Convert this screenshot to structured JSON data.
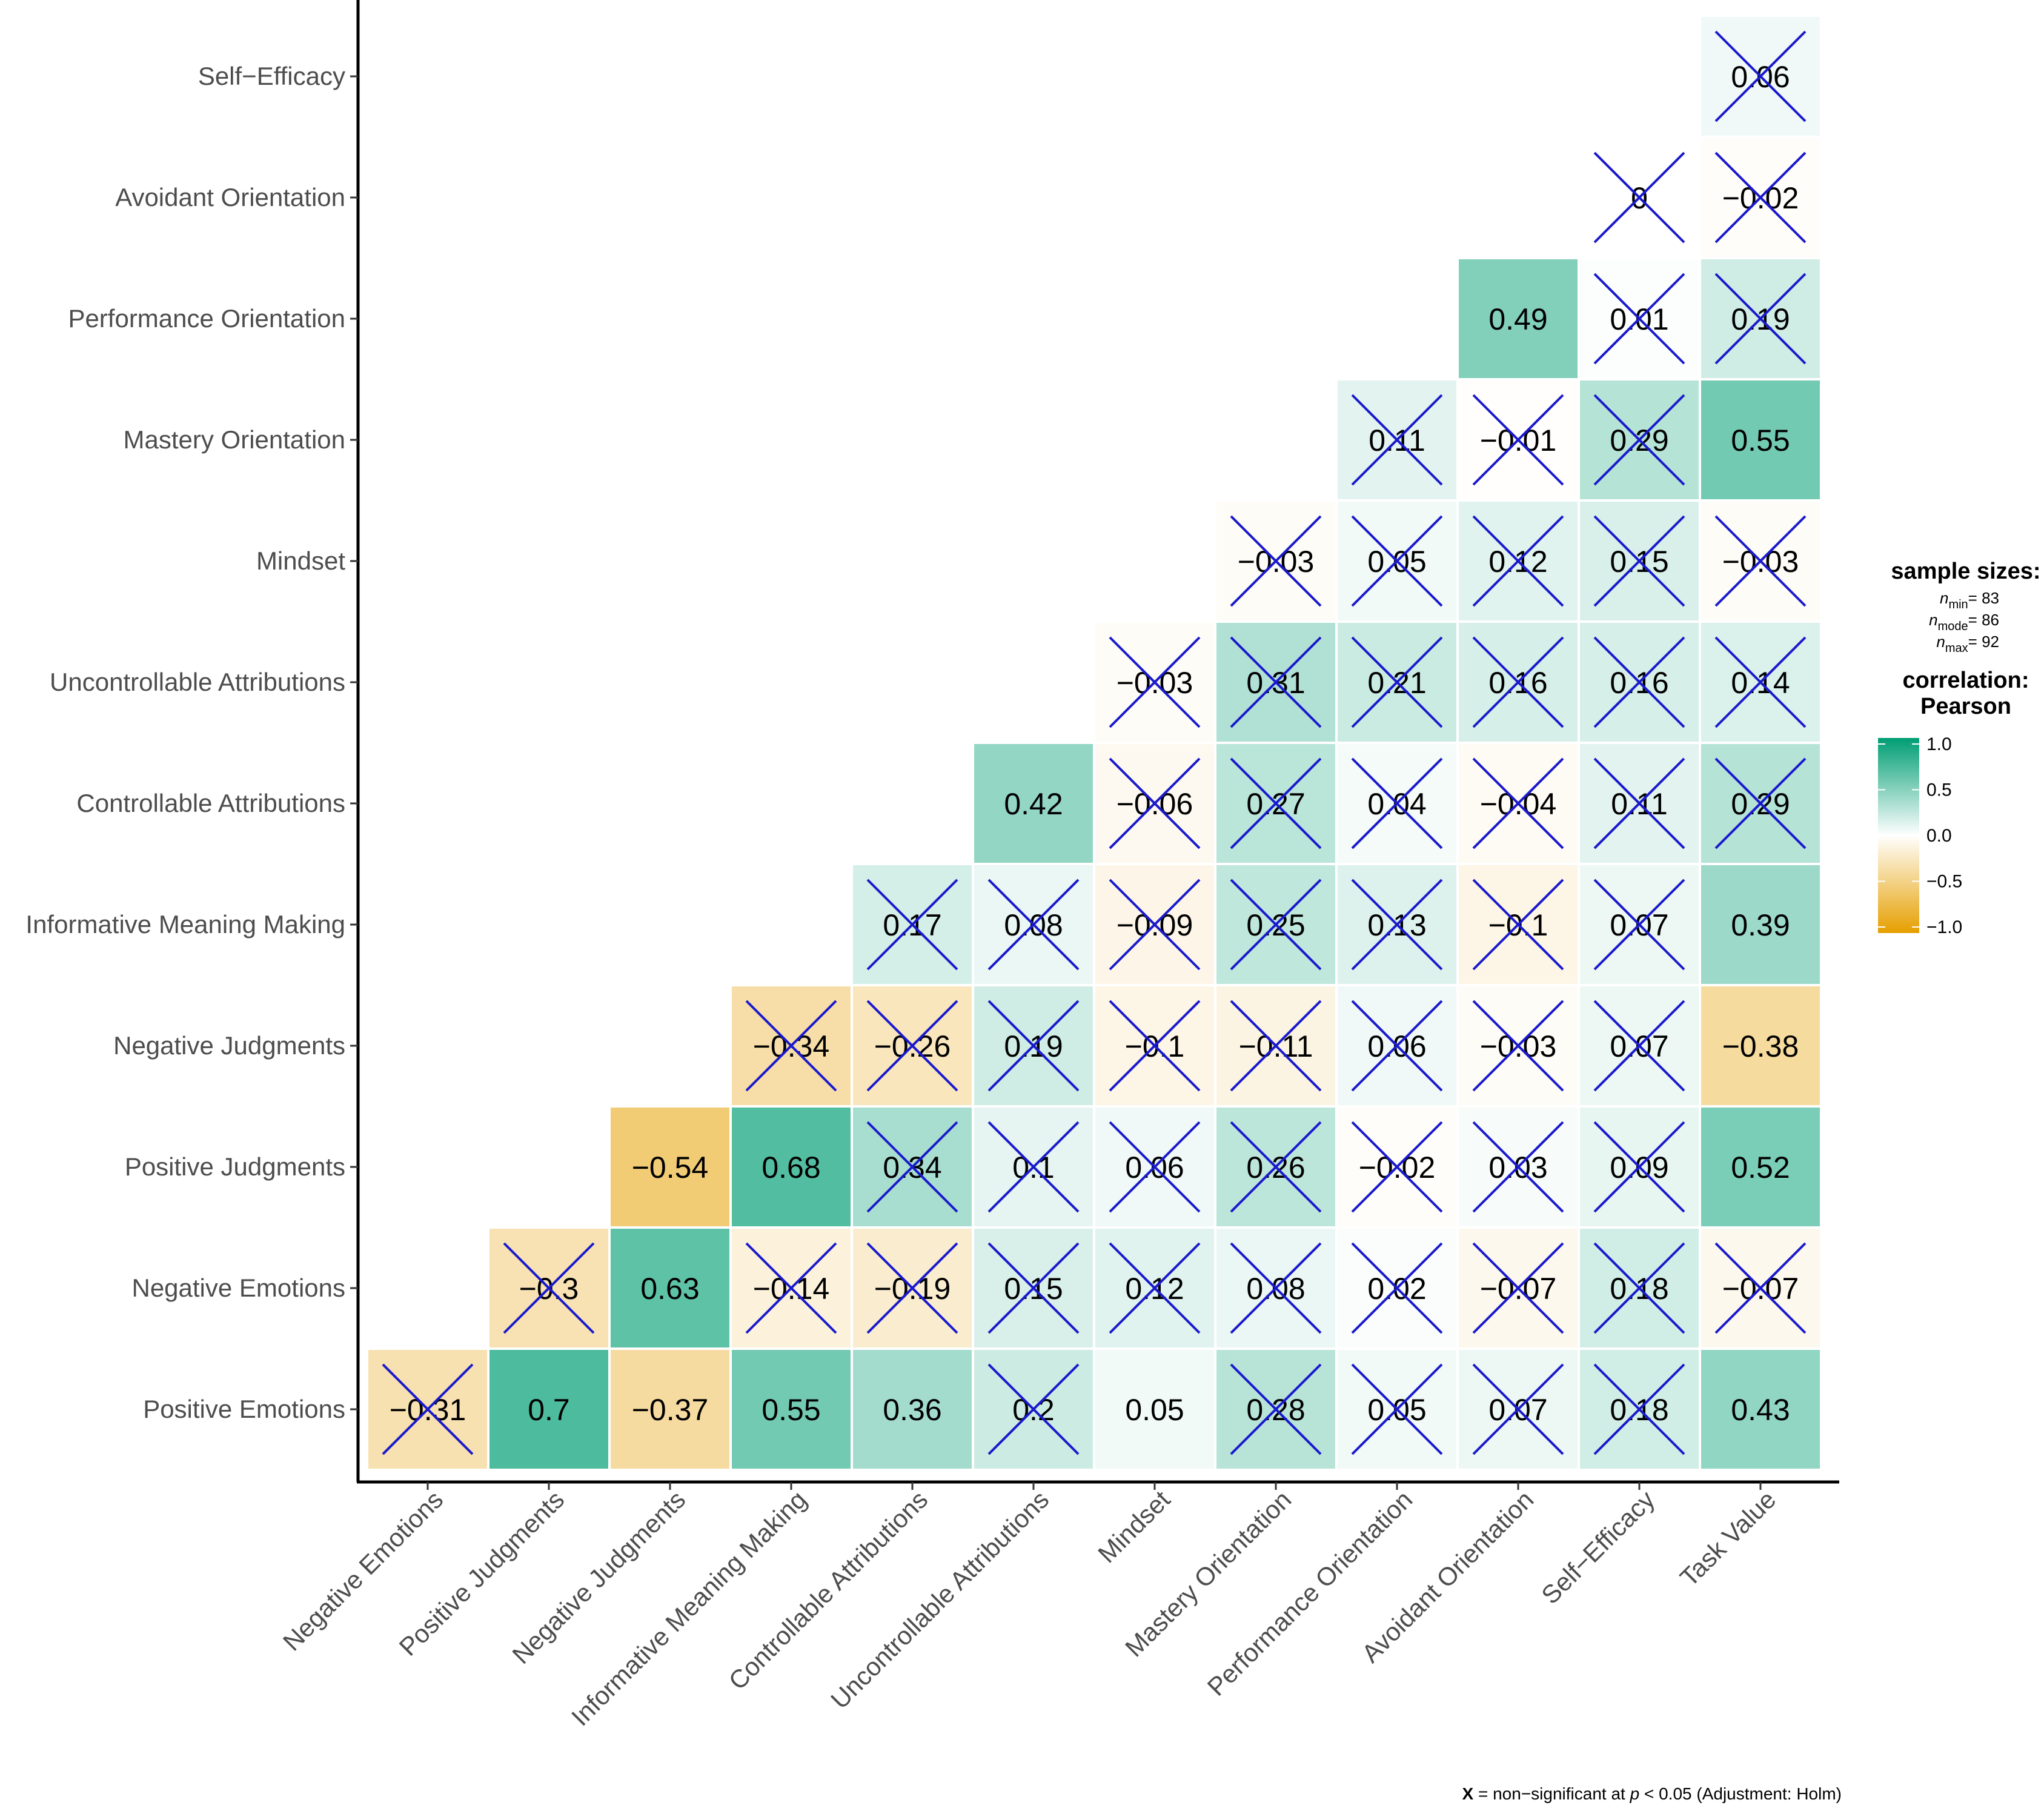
{
  "chart_data": {
    "type": "heatmap",
    "title": "",
    "subtitle": "",
    "xlabel": "",
    "ylabel": "",
    "x_categories": [
      "Negative Emotions",
      "Positive Judgments",
      "Negative Judgments",
      "Informative Meaning Making",
      "Controllable Attributions",
      "Uncontrollable Attributions",
      "Mindset",
      "Mastery Orientation",
      "Performance Orientation",
      "Avoidant Orientation",
      "Self−Efficacy",
      "Task Value"
    ],
    "y_categories": [
      "Positive Emotions",
      "Negative Emotions",
      "Positive Judgments",
      "Negative Judgments",
      "Informative Meaning Making",
      "Controllable Attributions",
      "Uncontrollable Attributions",
      "Mindset",
      "Mastery Orientation",
      "Performance Orientation",
      "Avoidant Orientation",
      "Self−Efficacy"
    ],
    "cells": [
      {
        "x": "Negative Emotions",
        "y": "Positive Emotions",
        "label": "−0.31",
        "value": -0.31,
        "nonsig": true
      },
      {
        "x": "Positive Judgments",
        "y": "Positive Emotions",
        "label": "0.7",
        "value": 0.7,
        "nonsig": false
      },
      {
        "x": "Negative Judgments",
        "y": "Positive Emotions",
        "label": "−0.37",
        "value": -0.37,
        "nonsig": false
      },
      {
        "x": "Informative Meaning Making",
        "y": "Positive Emotions",
        "label": "0.55",
        "value": 0.55,
        "nonsig": false
      },
      {
        "x": "Controllable Attributions",
        "y": "Positive Emotions",
        "label": "0.36",
        "value": 0.36,
        "nonsig": false
      },
      {
        "x": "Uncontrollable Attributions",
        "y": "Positive Emotions",
        "label": "0.2",
        "value": 0.2,
        "nonsig": true
      },
      {
        "x": "Mindset",
        "y": "Positive Emotions",
        "label": "0.05",
        "value": 0.05,
        "nonsig": false
      },
      {
        "x": "Mastery Orientation",
        "y": "Positive Emotions",
        "label": "0.28",
        "value": 0.28,
        "nonsig": true
      },
      {
        "x": "Performance Orientation",
        "y": "Positive Emotions",
        "label": "0.05",
        "value": 0.05,
        "nonsig": true
      },
      {
        "x": "Avoidant Orientation",
        "y": "Positive Emotions",
        "label": "0.07",
        "value": 0.07,
        "nonsig": true
      },
      {
        "x": "Self−Efficacy",
        "y": "Positive Emotions",
        "label": "0.18",
        "value": 0.18,
        "nonsig": true
      },
      {
        "x": "Task Value",
        "y": "Positive Emotions",
        "label": "0.43",
        "value": 0.43,
        "nonsig": false
      },
      {
        "x": "Positive Judgments",
        "y": "Negative Emotions",
        "label": "−0.3",
        "value": -0.3,
        "nonsig": true
      },
      {
        "x": "Negative Judgments",
        "y": "Negative Emotions",
        "label": "0.63",
        "value": 0.63,
        "nonsig": false
      },
      {
        "x": "Informative Meaning Making",
        "y": "Negative Emotions",
        "label": "−0.14",
        "value": -0.14,
        "nonsig": true
      },
      {
        "x": "Controllable Attributions",
        "y": "Negative Emotions",
        "label": "−0.19",
        "value": -0.19,
        "nonsig": true
      },
      {
        "x": "Uncontrollable Attributions",
        "y": "Negative Emotions",
        "label": "0.15",
        "value": 0.15,
        "nonsig": true
      },
      {
        "x": "Mindset",
        "y": "Negative Emotions",
        "label": "0.12",
        "value": 0.12,
        "nonsig": true
      },
      {
        "x": "Mastery Orientation",
        "y": "Negative Emotions",
        "label": "0.08",
        "value": 0.08,
        "nonsig": true
      },
      {
        "x": "Performance Orientation",
        "y": "Negative Emotions",
        "label": "0.02",
        "value": 0.02,
        "nonsig": true
      },
      {
        "x": "Avoidant Orientation",
        "y": "Negative Emotions",
        "label": "−0.07",
        "value": -0.07,
        "nonsig": true
      },
      {
        "x": "Self−Efficacy",
        "y": "Negative Emotions",
        "label": "0.18",
        "value": 0.18,
        "nonsig": true
      },
      {
        "x": "Task Value",
        "y": "Negative Emotions",
        "label": "−0.07",
        "value": -0.07,
        "nonsig": true
      },
      {
        "x": "Negative Judgments",
        "y": "Positive Judgments",
        "label": "−0.54",
        "value": -0.54,
        "nonsig": false
      },
      {
        "x": "Informative Meaning Making",
        "y": "Positive Judgments",
        "label": "0.68",
        "value": 0.68,
        "nonsig": false
      },
      {
        "x": "Controllable Attributions",
        "y": "Positive Judgments",
        "label": "0.34",
        "value": 0.34,
        "nonsig": true
      },
      {
        "x": "Uncontrollable Attributions",
        "y": "Positive Judgments",
        "label": "0.1",
        "value": 0.1,
        "nonsig": true
      },
      {
        "x": "Mindset",
        "y": "Positive Judgments",
        "label": "0.06",
        "value": 0.06,
        "nonsig": true
      },
      {
        "x": "Mastery Orientation",
        "y": "Positive Judgments",
        "label": "0.26",
        "value": 0.26,
        "nonsig": true
      },
      {
        "x": "Performance Orientation",
        "y": "Positive Judgments",
        "label": "−0.02",
        "value": -0.02,
        "nonsig": true
      },
      {
        "x": "Avoidant Orientation",
        "y": "Positive Judgments",
        "label": "0.03",
        "value": 0.03,
        "nonsig": true
      },
      {
        "x": "Self−Efficacy",
        "y": "Positive Judgments",
        "label": "0.09",
        "value": 0.09,
        "nonsig": true
      },
      {
        "x": "Task Value",
        "y": "Positive Judgments",
        "label": "0.52",
        "value": 0.52,
        "nonsig": false
      },
      {
        "x": "Informative Meaning Making",
        "y": "Negative Judgments",
        "label": "−0.34",
        "value": -0.34,
        "nonsig": true
      },
      {
        "x": "Controllable Attributions",
        "y": "Negative Judgments",
        "label": "−0.26",
        "value": -0.26,
        "nonsig": true
      },
      {
        "x": "Uncontrollable Attributions",
        "y": "Negative Judgments",
        "label": "0.19",
        "value": 0.19,
        "nonsig": true
      },
      {
        "x": "Mindset",
        "y": "Negative Judgments",
        "label": "−0.1",
        "value": -0.1,
        "nonsig": true
      },
      {
        "x": "Mastery Orientation",
        "y": "Negative Judgments",
        "label": "−0.11",
        "value": -0.11,
        "nonsig": true
      },
      {
        "x": "Performance Orientation",
        "y": "Negative Judgments",
        "label": "0.06",
        "value": 0.06,
        "nonsig": true
      },
      {
        "x": "Avoidant Orientation",
        "y": "Negative Judgments",
        "label": "−0.03",
        "value": -0.03,
        "nonsig": true
      },
      {
        "x": "Self−Efficacy",
        "y": "Negative Judgments",
        "label": "0.07",
        "value": 0.07,
        "nonsig": true
      },
      {
        "x": "Task Value",
        "y": "Negative Judgments",
        "label": "−0.38",
        "value": -0.38,
        "nonsig": false
      },
      {
        "x": "Controllable Attributions",
        "y": "Informative Meaning Making",
        "label": "0.17",
        "value": 0.17,
        "nonsig": true
      },
      {
        "x": "Uncontrollable Attributions",
        "y": "Informative Meaning Making",
        "label": "0.08",
        "value": 0.08,
        "nonsig": true
      },
      {
        "x": "Mindset",
        "y": "Informative Meaning Making",
        "label": "−0.09",
        "value": -0.09,
        "nonsig": true
      },
      {
        "x": "Mastery Orientation",
        "y": "Informative Meaning Making",
        "label": "0.25",
        "value": 0.25,
        "nonsig": true
      },
      {
        "x": "Performance Orientation",
        "y": "Informative Meaning Making",
        "label": "0.13",
        "value": 0.13,
        "nonsig": true
      },
      {
        "x": "Avoidant Orientation",
        "y": "Informative Meaning Making",
        "label": "−0.1",
        "value": -0.1,
        "nonsig": true
      },
      {
        "x": "Self−Efficacy",
        "y": "Informative Meaning Making",
        "label": "0.07",
        "value": 0.07,
        "nonsig": true
      },
      {
        "x": "Task Value",
        "y": "Informative Meaning Making",
        "label": "0.39",
        "value": 0.39,
        "nonsig": false
      },
      {
        "x": "Uncontrollable Attributions",
        "y": "Controllable Attributions",
        "label": "0.42",
        "value": 0.42,
        "nonsig": false
      },
      {
        "x": "Mindset",
        "y": "Controllable Attributions",
        "label": "−0.06",
        "value": -0.06,
        "nonsig": true
      },
      {
        "x": "Mastery Orientation",
        "y": "Controllable Attributions",
        "label": "0.27",
        "value": 0.27,
        "nonsig": true
      },
      {
        "x": "Performance Orientation",
        "y": "Controllable Attributions",
        "label": "0.04",
        "value": 0.04,
        "nonsig": true
      },
      {
        "x": "Avoidant Orientation",
        "y": "Controllable Attributions",
        "label": "−0.04",
        "value": -0.04,
        "nonsig": true
      },
      {
        "x": "Self−Efficacy",
        "y": "Controllable Attributions",
        "label": "0.11",
        "value": 0.11,
        "nonsig": true
      },
      {
        "x": "Task Value",
        "y": "Controllable Attributions",
        "label": "0.29",
        "value": 0.29,
        "nonsig": true
      },
      {
        "x": "Mindset",
        "y": "Uncontrollable Attributions",
        "label": "−0.03",
        "value": -0.03,
        "nonsig": true
      },
      {
        "x": "Mastery Orientation",
        "y": "Uncontrollable Attributions",
        "label": "0.31",
        "value": 0.31,
        "nonsig": true
      },
      {
        "x": "Performance Orientation",
        "y": "Uncontrollable Attributions",
        "label": "0.21",
        "value": 0.21,
        "nonsig": true
      },
      {
        "x": "Avoidant Orientation",
        "y": "Uncontrollable Attributions",
        "label": "0.16",
        "value": 0.16,
        "nonsig": true
      },
      {
        "x": "Self−Efficacy",
        "y": "Uncontrollable Attributions",
        "label": "0.16",
        "value": 0.16,
        "nonsig": true
      },
      {
        "x": "Task Value",
        "y": "Uncontrollable Attributions",
        "label": "0.14",
        "value": 0.14,
        "nonsig": true
      },
      {
        "x": "Mastery Orientation",
        "y": "Mindset",
        "label": "−0.03",
        "value": -0.03,
        "nonsig": true
      },
      {
        "x": "Performance Orientation",
        "y": "Mindset",
        "label": "0.05",
        "value": 0.05,
        "nonsig": true
      },
      {
        "x": "Avoidant Orientation",
        "y": "Mindset",
        "label": "0.12",
        "value": 0.12,
        "nonsig": true
      },
      {
        "x": "Self−Efficacy",
        "y": "Mindset",
        "label": "0.15",
        "value": 0.15,
        "nonsig": true
      },
      {
        "x": "Task Value",
        "y": "Mindset",
        "label": "−0.03",
        "value": -0.03,
        "nonsig": true
      },
      {
        "x": "Performance Orientation",
        "y": "Mastery Orientation",
        "label": "0.11",
        "value": 0.11,
        "nonsig": true
      },
      {
        "x": "Avoidant Orientation",
        "y": "Mastery Orientation",
        "label": "−0.01",
        "value": -0.01,
        "nonsig": true
      },
      {
        "x": "Self−Efficacy",
        "y": "Mastery Orientation",
        "label": "0.29",
        "value": 0.29,
        "nonsig": true
      },
      {
        "x": "Task Value",
        "y": "Mastery Orientation",
        "label": "0.55",
        "value": 0.55,
        "nonsig": false
      },
      {
        "x": "Avoidant Orientation",
        "y": "Performance Orientation",
        "label": "0.49",
        "value": 0.49,
        "nonsig": false
      },
      {
        "x": "Self−Efficacy",
        "y": "Performance Orientation",
        "label": "0.01",
        "value": 0.01,
        "nonsig": true
      },
      {
        "x": "Task Value",
        "y": "Performance Orientation",
        "label": "0.19",
        "value": 0.19,
        "nonsig": true
      },
      {
        "x": "Self−Efficacy",
        "y": "Avoidant Orientation",
        "label": "0",
        "value": 0,
        "nonsig": true
      },
      {
        "x": "Task Value",
        "y": "Avoidant Orientation",
        "label": "−0.02",
        "value": -0.02,
        "nonsig": true
      },
      {
        "x": "Task Value",
        "y": "Self−Efficacy",
        "label": "0.06",
        "value": 0.06,
        "nonsig": true
      }
    ],
    "color_scale": {
      "low": "#E69F00",
      "mid": "#FFFFFF",
      "high": "#009E73",
      "min": -1.0,
      "max": 1.0
    },
    "legend": {
      "placement": "right",
      "sample_title": "sample sizes:",
      "n_min": {
        "base": "n",
        "sub": "min",
        "value": "= 83"
      },
      "n_mode": {
        "base": "n",
        "sub": "mode",
        "value": "= 86"
      },
      "n_max": {
        "base": "n",
        "sub": "max",
        "value": "= 92"
      },
      "corr_title_1": "correlation:",
      "corr_title_2": "Pearson",
      "ticks": [
        "1.0",
        "0.5",
        "0.0",
        "−0.5",
        "−1.0"
      ]
    },
    "caption": {
      "x": "X",
      "text_1": " = non−significant at ",
      "p": "p",
      "text_2": " < 0.05 (Adjustment: Holm)"
    },
    "cross_color": "#1a1acc",
    "grid": false
  }
}
